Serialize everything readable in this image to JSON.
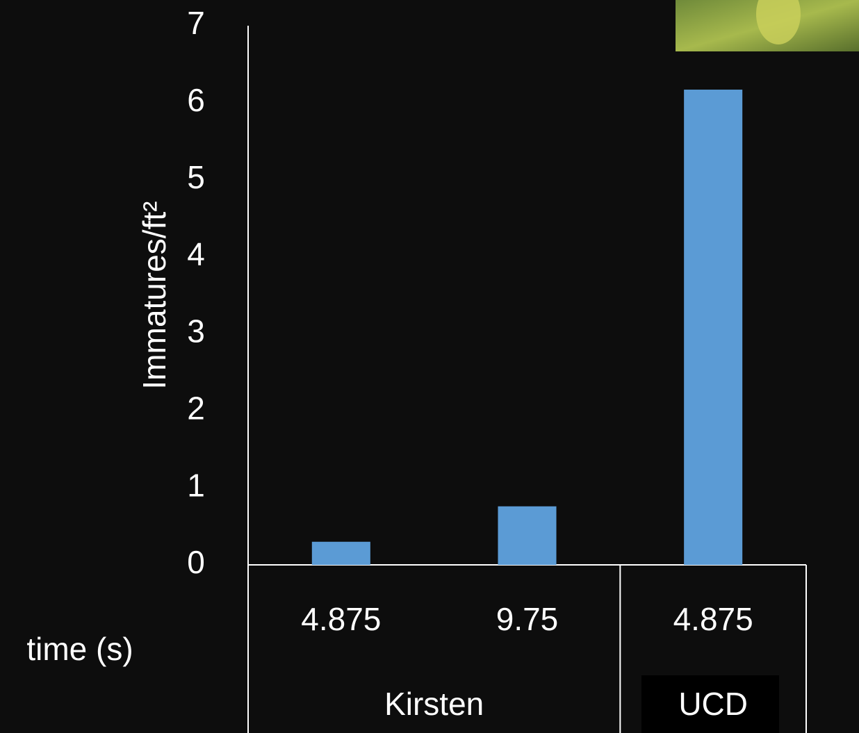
{
  "chart_data": {
    "type": "bar",
    "y_label": "Immatures/ft²",
    "x_label": "time (s)",
    "groups": [
      {
        "name": "Kirsten",
        "categories": [
          "4.875",
          "9.75"
        ]
      },
      {
        "name": "UCD",
        "categories": [
          "4.875"
        ]
      }
    ],
    "values": [
      0.3,
      0.76,
      6.17
    ],
    "color": "#5b9bd5",
    "ylim": [
      0,
      7
    ],
    "yticks": [
      0,
      1,
      2,
      3,
      4,
      5,
      6,
      7
    ],
    "grid": false
  }
}
